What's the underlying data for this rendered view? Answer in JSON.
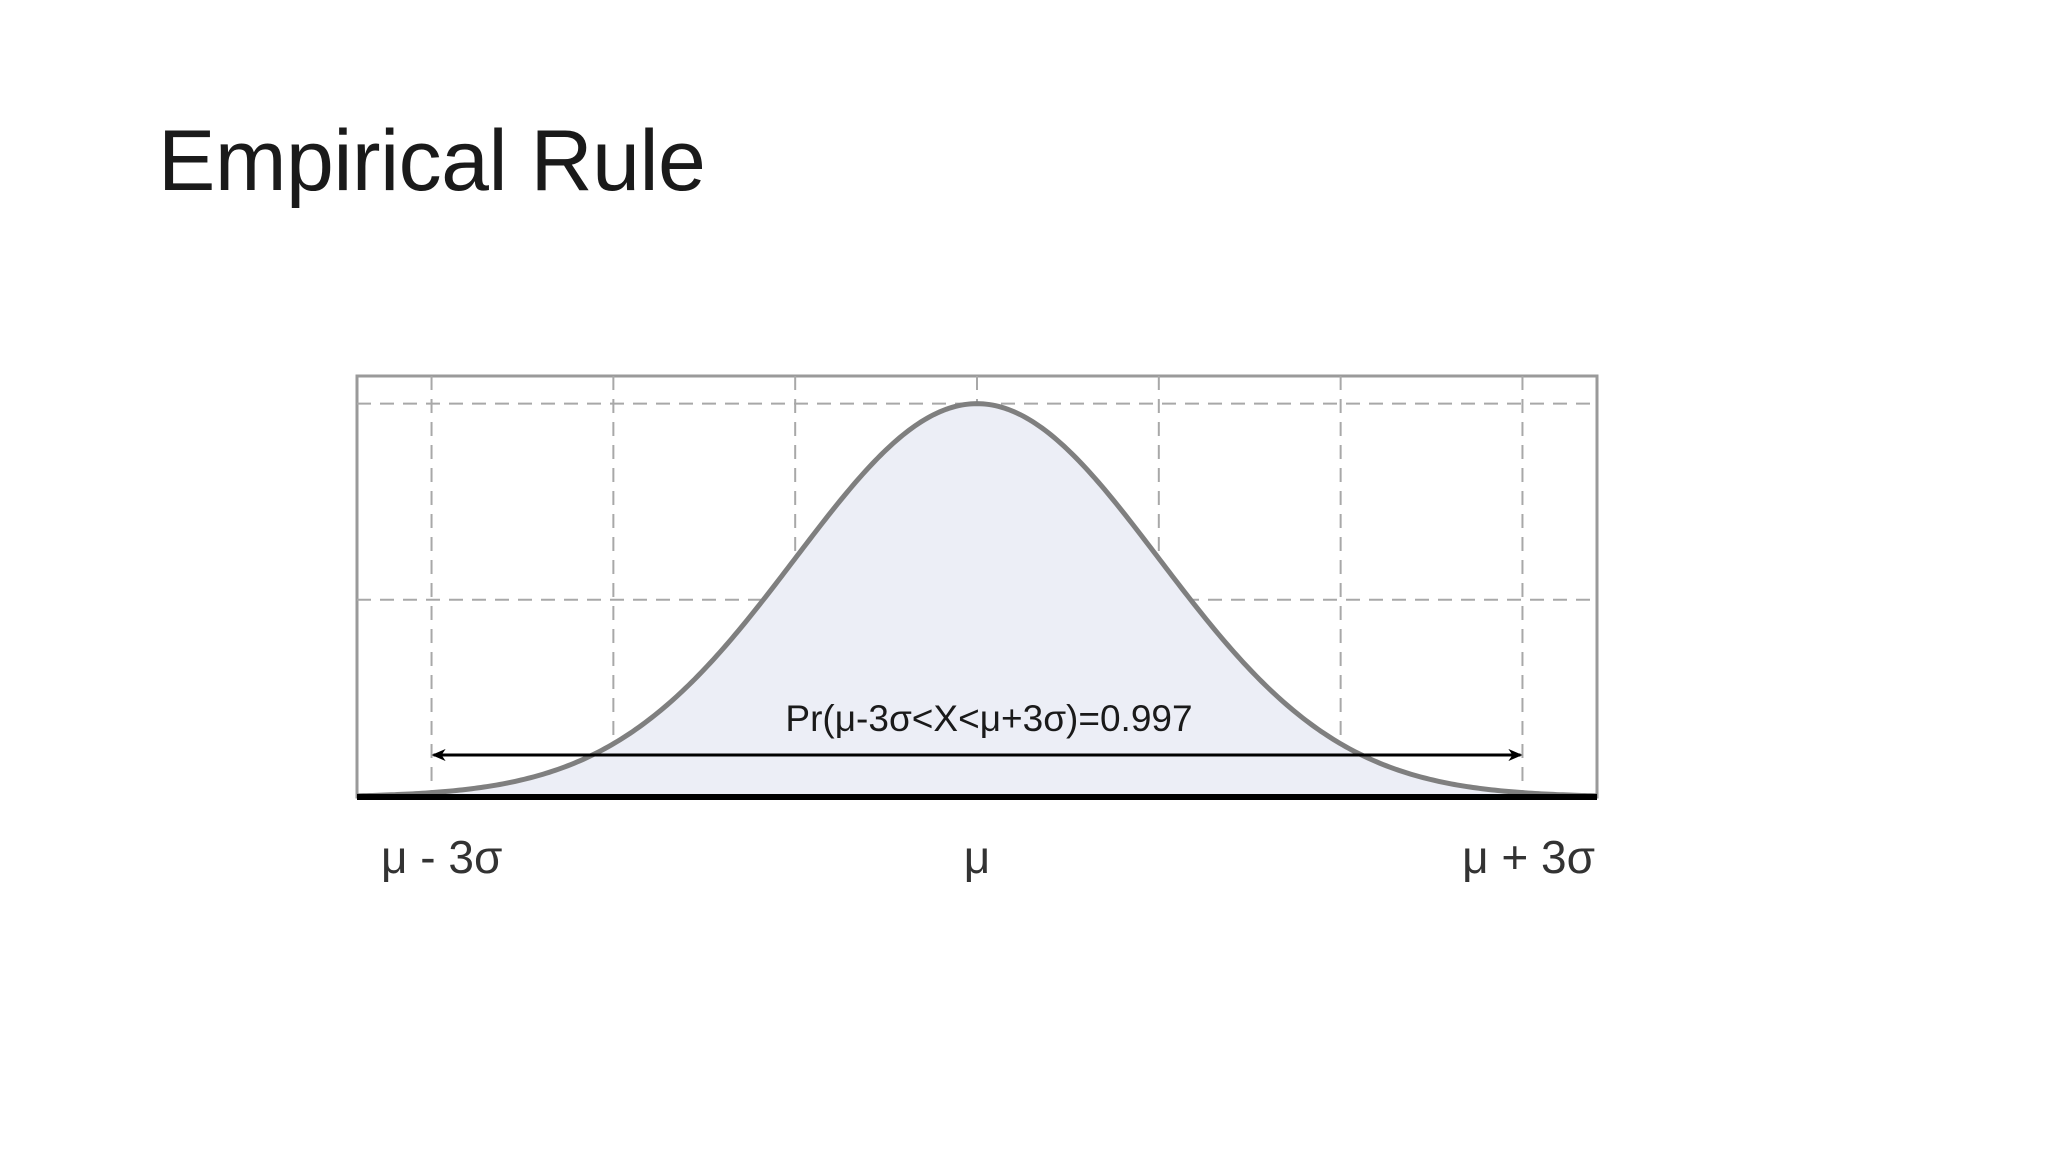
{
  "slide": {
    "title": "Empirical Rule"
  },
  "chart_data": {
    "type": "area",
    "title": "Empirical Rule",
    "distribution": "normal",
    "x_ticks": [
      {
        "value": -3,
        "label": "μ - 3σ"
      },
      {
        "value": 0,
        "label": "μ"
      },
      {
        "value": 3,
        "label": "μ + 3σ"
      }
    ],
    "xlim": [
      -3.41,
      3.41
    ],
    "ylim": [
      0,
      0.427
    ],
    "gridlines_x": [
      -3,
      -2,
      -1,
      0,
      1,
      2,
      3
    ],
    "gridlines_y": [
      0.2,
      0.399
    ],
    "grid": true,
    "grid_style": "dashed",
    "interval": {
      "from": -3,
      "to": 3
    },
    "annotation": "Pr(μ-3σ<X<μ+3σ)=0.997",
    "probability": 0.997,
    "colors": {
      "curve": "#7f7f7f",
      "fill": "#eceef6",
      "grid": "#a8a8a8",
      "frame": "#9a9a9a",
      "baseline": "#000000",
      "arrow": "#000000"
    }
  }
}
